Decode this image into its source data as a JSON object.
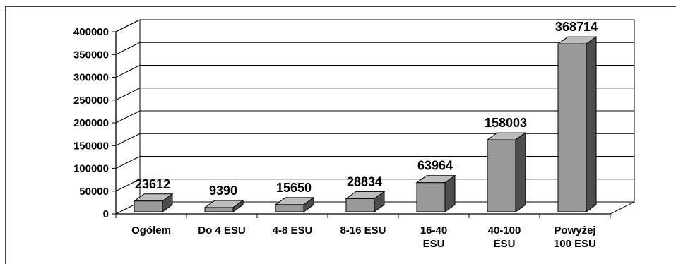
{
  "colors": {
    "bar_front": "#999999",
    "bar_top": "#bdbdbd",
    "bar_side": "#4d4d4d",
    "grid": "#000000",
    "background": "#ffffff"
  },
  "chart_data": {
    "type": "bar",
    "categories": [
      [
        "Ogółem"
      ],
      [
        "Do 4 ESU"
      ],
      [
        "4-8 ESU"
      ],
      [
        "8-16 ESU"
      ],
      [
        "16-40",
        "ESU"
      ],
      [
        "40-100",
        "ESU"
      ],
      [
        "Powyżej",
        "100 ESU"
      ]
    ],
    "values": [
      23612,
      9390,
      15650,
      28834,
      63964,
      158003,
      368714
    ],
    "data_labels": [
      "23612",
      "9390",
      "15650",
      "28834",
      "63964",
      "158003",
      "368714"
    ],
    "yticks": [
      0,
      50000,
      100000,
      150000,
      200000,
      250000,
      300000,
      350000,
      400000
    ],
    "ytick_labels": [
      "0",
      "50000",
      "100000",
      "150000",
      "200000",
      "250000",
      "300000",
      "350000",
      "400000"
    ],
    "ylim": [
      0,
      400000
    ],
    "title": "",
    "xlabel": "",
    "ylabel": "",
    "grid": true,
    "legend": "none",
    "style": "3d-column"
  }
}
